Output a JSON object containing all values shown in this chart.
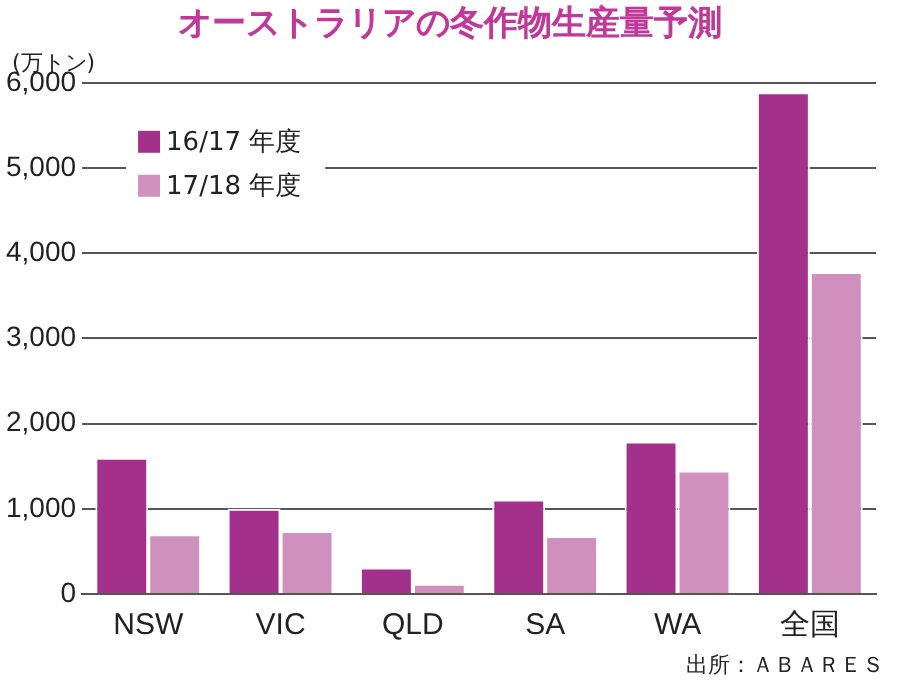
{
  "chart_data": {
    "type": "bar",
    "title": "オーストラリアの冬作物生産量予測",
    "ylabel": "(万トン)",
    "categories": [
      "NSW",
      "VIC",
      "QLD",
      "SA",
      "WA",
      "全国"
    ],
    "series": [
      {
        "name": "16/17 年度",
        "color": "#a3308a",
        "values": [
          1600,
          1000,
          310,
          1110,
          1790,
          5890
        ]
      },
      {
        "name": "17/18 年度",
        "color": "#cf90be",
        "values": [
          700,
          740,
          120,
          680,
          1450,
          3780
        ]
      }
    ],
    "ylim": [
      0,
      6000
    ],
    "yticks": [
      {
        "value": 0,
        "label": "0"
      },
      {
        "value": 1000,
        "label": "1,000"
      },
      {
        "value": 2000,
        "label": "2,000"
      },
      {
        "value": 3000,
        "label": "3,000"
      },
      {
        "value": 4000,
        "label": "4,000"
      },
      {
        "value": 5000,
        "label": "5,000"
      },
      {
        "value": 6000,
        "label": "6,000"
      }
    ],
    "grid": "y",
    "legend": "top left",
    "annotations": [
      "出所：ＡＢＡＲＥＳ"
    ]
  }
}
